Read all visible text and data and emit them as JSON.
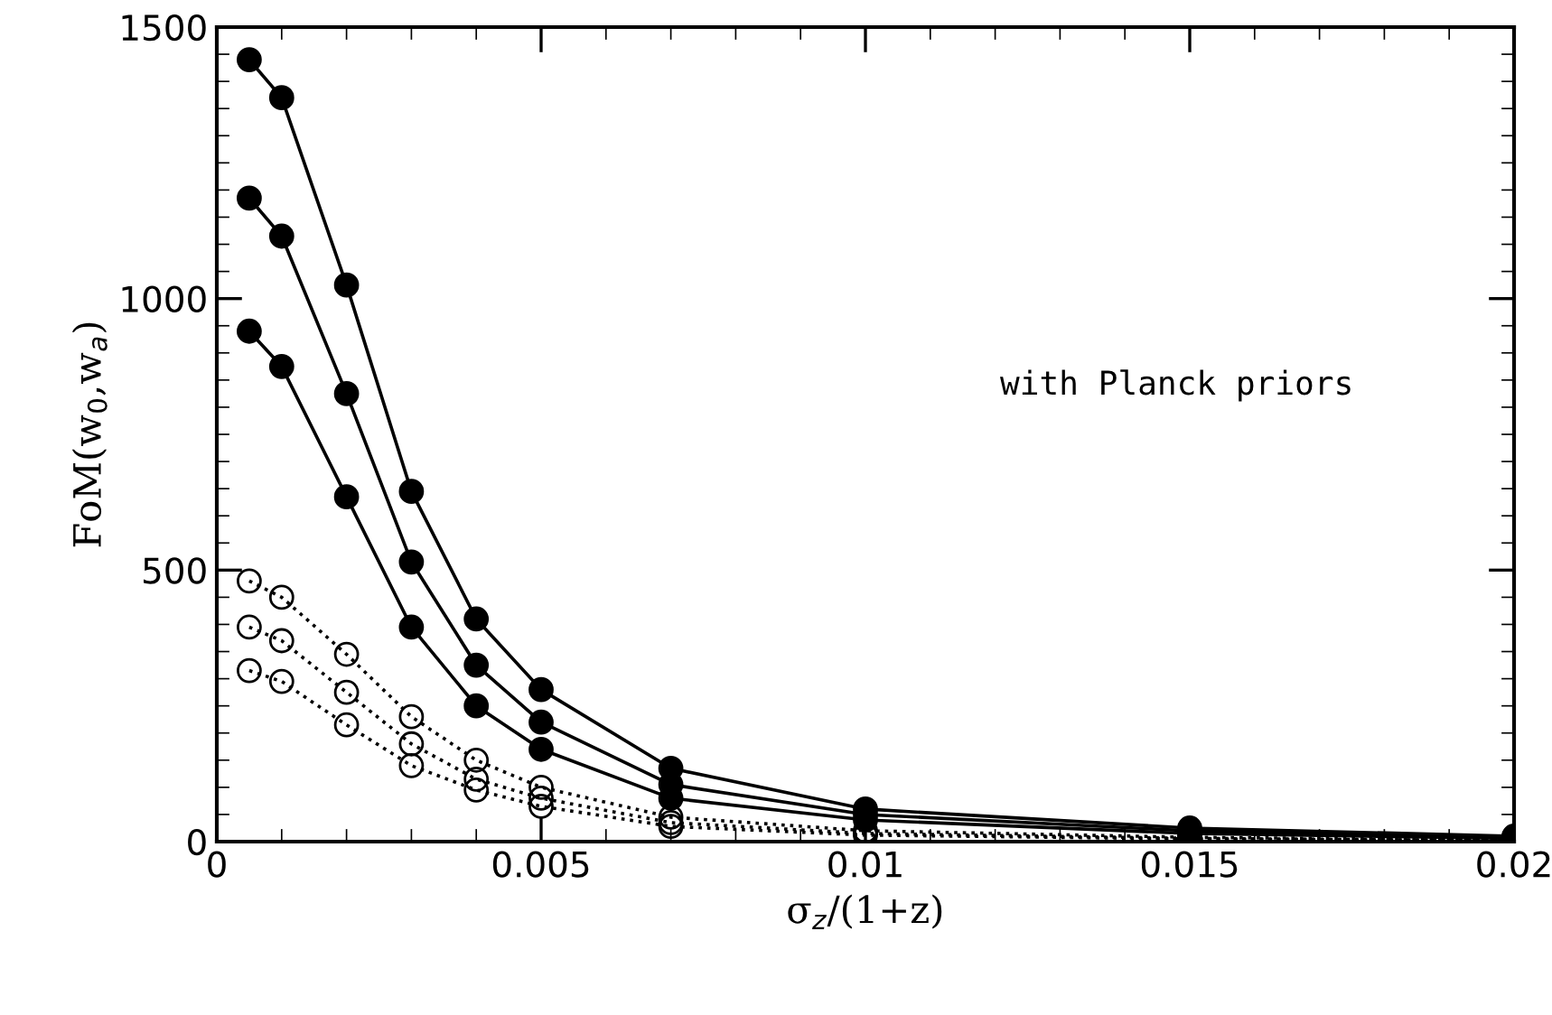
{
  "chart_data": {
    "type": "line",
    "xlabel": "σ$_{z}$/(1+z)",
    "ylabel": "FoM(w$_{0}$,w$_{a}$)",
    "annotations": [
      "with Planck priors"
    ],
    "x": [
      0.0005,
      0.001,
      0.002,
      0.003,
      0.004,
      0.005,
      0.007,
      0.01,
      0.015,
      0.02
    ],
    "series": [
      {
        "color": "#000000",
        "line_style": "solid",
        "values": [
          1440,
          1370,
          1025,
          645,
          410,
          280,
          135,
          60,
          25,
          10
        ]
      },
      {
        "color": "#000000",
        "line_style": "solid",
        "values": [
          1185,
          1115,
          825,
          515,
          325,
          220,
          105,
          50,
          20,
          8
        ]
      },
      {
        "color": "#000000",
        "line_style": "solid",
        "values": [
          940,
          875,
          635,
          395,
          250,
          170,
          80,
          40,
          15,
          6
        ]
      },
      {
        "color": "#000000",
        "line_style": "dotted",
        "values": [
          480,
          450,
          345,
          230,
          150,
          100,
          45,
          20,
          8,
          3
        ]
      },
      {
        "color": "#000000",
        "line_style": "dotted",
        "values": [
          395,
          370,
          275,
          180,
          115,
          80,
          35,
          15,
          6,
          2
        ]
      },
      {
        "color": "#000000",
        "line_style": "dotted",
        "values": [
          315,
          295,
          215,
          140,
          95,
          65,
          28,
          12,
          5,
          2
        ]
      }
    ],
    "marker": "circle",
    "xlim": [
      0,
      0.02
    ],
    "xticks": [
      0,
      0.005,
      0.01,
      0.015,
      0.02
    ],
    "ylim": [
      0,
      1500
    ],
    "yticks": [
      0,
      500,
      1000,
      1500
    ],
    "grid": false,
    "legend": false
  }
}
